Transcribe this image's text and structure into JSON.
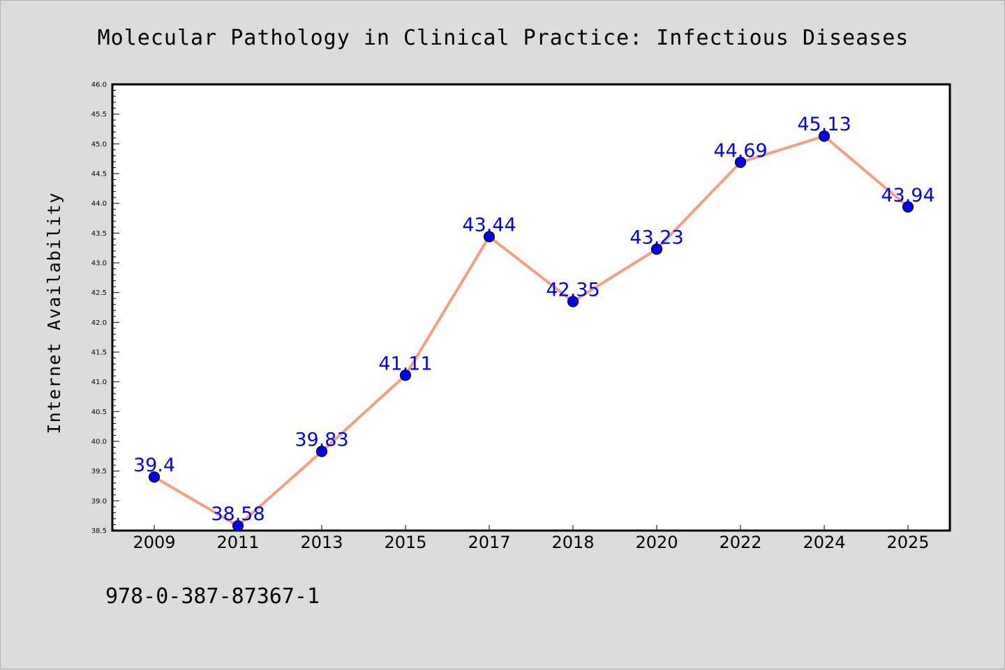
{
  "chart_data": {
    "type": "line",
    "title": "Molecular Pathology in Clinical Practice: Infectious Diseases",
    "xlabel": "",
    "ylabel": "Internet Availability",
    "categories": [
      "2009",
      "2011",
      "2013",
      "2015",
      "2017",
      "2018",
      "2020",
      "2022",
      "2024",
      "2025"
    ],
    "series": [
      {
        "values": [
          39.4,
          38.58,
          39.83,
          41.11,
          43.44,
          42.35,
          43.23,
          44.69,
          45.13,
          43.94
        ],
        "labels": [
          "39.4",
          "38.58",
          "39.83",
          "41.11",
          "43.44",
          "42.35",
          "43.23",
          "44.69",
          "45.13",
          "43.94"
        ]
      }
    ],
    "ylim": [
      38.5,
      46.0
    ],
    "yticks": [
      "38.5",
      "39.0",
      "39.5",
      "40.0",
      "40.5",
      "41.0",
      "41.5",
      "42.0",
      "42.5",
      "43.0",
      "43.5",
      "44.0",
      "44.5",
      "45.0",
      "45.5",
      "46.0"
    ],
    "grid": false,
    "legend": "none"
  },
  "footer": {
    "isbn": "978-0-387-87367-1"
  },
  "colors": {
    "background": "#dcdcdc",
    "plot_background": "#ffffff",
    "line": "#f4a07e",
    "marker": "#0000ee",
    "data_label": "#0000ff",
    "axis": "#000000"
  }
}
